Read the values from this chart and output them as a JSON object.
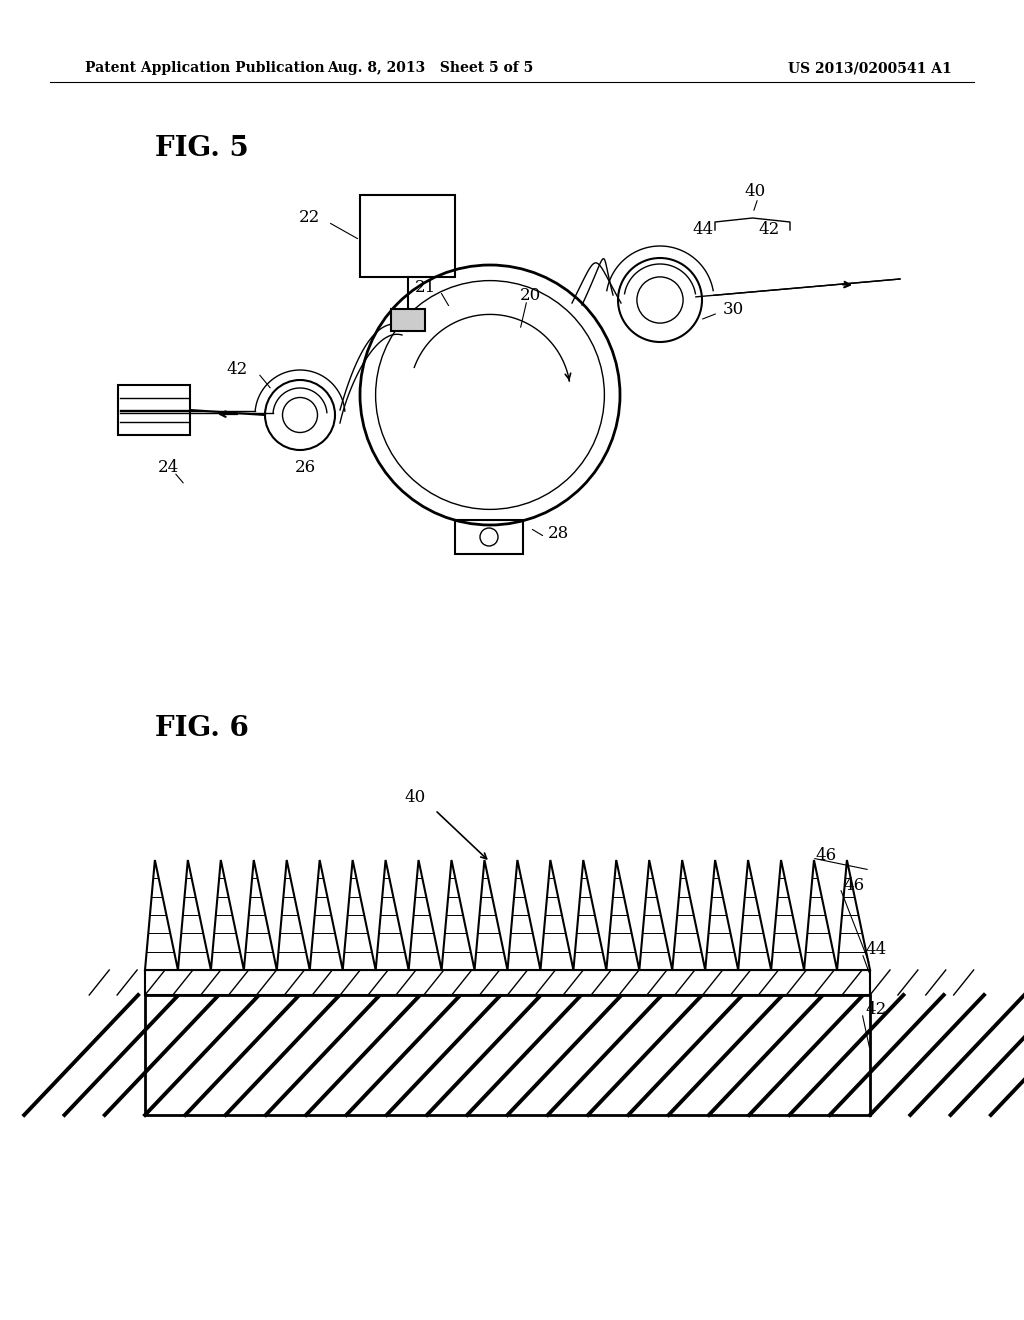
{
  "bg_color": "#ffffff",
  "header_left": "Patent Application Publication",
  "header_mid": "Aug. 8, 2013   Sheet 5 of 5",
  "header_right": "US 2013/0200541 A1",
  "fig5_label": "FIG. 5",
  "fig6_label": "FIG. 6"
}
